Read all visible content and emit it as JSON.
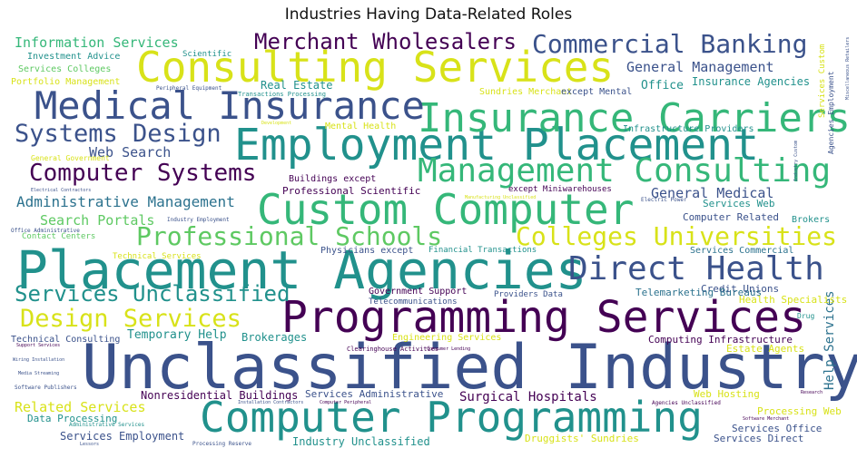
{
  "title": "Industries Having Data-Related Roles",
  "palette": {
    "deep-purple": "#440154",
    "blue": "#3b528b",
    "teal": "#21918c",
    "green": "#5ec962",
    "yellow": "#d8e219"
  },
  "chart_data": {
    "type": "wordcloud",
    "title": "Industries Having Data-Related Roles",
    "words": [
      {
        "text": "Unclassified Industry",
        "color": "#3b528b",
        "weight": 100
      },
      {
        "text": "Placement Agencies",
        "color": "#21918c",
        "weight": 92
      },
      {
        "text": "Employment Placement",
        "color": "#21918c",
        "weight": 80
      },
      {
        "text": "Programming Services",
        "color": "#440154",
        "weight": 80
      },
      {
        "text": "Computer Programming",
        "color": "#21918c",
        "weight": 75
      },
      {
        "text": "Consulting Services",
        "color": "#d8e219",
        "weight": 73
      },
      {
        "text": "Custom Computer",
        "color": "#35b779",
        "weight": 73
      },
      {
        "text": "Insurance Carriers",
        "color": "#35b779",
        "weight": 70
      },
      {
        "text": "Medical Insurance",
        "color": "#3b528b",
        "weight": 68
      },
      {
        "text": "Management Consulting",
        "color": "#35b779",
        "weight": 58
      },
      {
        "text": "Direct Health",
        "color": "#3b528b",
        "weight": 55
      },
      {
        "text": "Commercial Banking",
        "color": "#3b528b",
        "weight": 45
      },
      {
        "text": "Professional Schools",
        "color": "#5ec962",
        "weight": 45
      },
      {
        "text": "Colleges Universities",
        "color": "#d8e219",
        "weight": 45
      },
      {
        "text": "Systems Design",
        "color": "#3b528b",
        "weight": 42
      },
      {
        "text": "Design Services",
        "color": "#d8e219",
        "weight": 42
      },
      {
        "text": "Services Unclassified",
        "color": "#21918c",
        "weight": 40
      },
      {
        "text": "Merchant Wholesalers",
        "color": "#440154",
        "weight": 40
      },
      {
        "text": "Computer Systems",
        "color": "#440154",
        "weight": 40
      },
      {
        "text": "Administrative Management",
        "color": "#2c728e",
        "weight": 28
      },
      {
        "text": "General Management",
        "color": "#3b528b",
        "weight": 25
      },
      {
        "text": "Information Services",
        "color": "#35b779",
        "weight": 24
      },
      {
        "text": "Search Portals",
        "color": "#5ec962",
        "weight": 22
      },
      {
        "text": "Web Search",
        "color": "#3b528b",
        "weight": 22
      },
      {
        "text": "General Medical",
        "color": "#3b528b",
        "weight": 22
      },
      {
        "text": "Help Services",
        "color": "#2c728e",
        "weight": 20
      },
      {
        "text": "Surgical Hospitals",
        "color": "#440154",
        "weight": 22
      },
      {
        "text": "Related Services",
        "color": "#d8e219",
        "weight": 22
      },
      {
        "text": "Temporary Help",
        "color": "#21918c",
        "weight": 20
      },
      {
        "text": "Nonresidential Buildings",
        "color": "#440154",
        "weight": 18
      },
      {
        "text": "Services Administrative",
        "color": "#3b528b",
        "weight": 18
      },
      {
        "text": "Services Employment",
        "color": "#3b528b",
        "weight": 18
      },
      {
        "text": "Industry Unclassified",
        "color": "#21918c",
        "weight": 18
      },
      {
        "text": "Insurance Agencies",
        "color": "#21918c",
        "weight": 18
      },
      {
        "text": "Office",
        "color": "#21918c",
        "weight": 18
      },
      {
        "text": "Real Estate",
        "color": "#21918c",
        "weight": 17
      },
      {
        "text": "Brokerages",
        "color": "#21918c",
        "weight": 17
      },
      {
        "text": "Credit Unions",
        "color": "#3b528b",
        "weight": 16
      },
      {
        "text": "Telemarketing Bureaus",
        "color": "#2c728e",
        "weight": 16
      },
      {
        "text": "Health Specialists",
        "color": "#d8e219",
        "weight": 16
      },
      {
        "text": "Computing Infrastructure",
        "color": "#440154",
        "weight": 16
      },
      {
        "text": "Estate Agents",
        "color": "#d8e219",
        "weight": 16
      },
      {
        "text": "Professional Scientific",
        "color": "#440154",
        "weight": 16
      },
      {
        "text": "Services Web",
        "color": "#21918c",
        "weight": 16
      },
      {
        "text": "Computer Related",
        "color": "#3b528b",
        "weight": 15
      },
      {
        "text": "Services Commercial",
        "color": "#2c728e",
        "weight": 15
      },
      {
        "text": "Government Support",
        "color": "#440154",
        "weight": 15
      },
      {
        "text": "Web Hosting",
        "color": "#d8e219",
        "weight": 15
      },
      {
        "text": "Processing Web",
        "color": "#d8e219",
        "weight": 15
      },
      {
        "text": "Services Office",
        "color": "#3b528b",
        "weight": 15
      },
      {
        "text": "Services Direct",
        "color": "#3b528b",
        "weight": 15
      },
      {
        "text": "Druggists' Sundries",
        "color": "#d8e219",
        "weight": 15
      },
      {
        "text": "Data Processing",
        "color": "#21918c",
        "weight": 15
      },
      {
        "text": "Brokers",
        "color": "#21918c",
        "weight": 15
      },
      {
        "text": "Physicians except",
        "color": "#3b528b",
        "weight": 15
      },
      {
        "text": "Buildings except",
        "color": "#440154",
        "weight": 14
      },
      {
        "text": "Technical Consulting",
        "color": "#3b528b",
        "weight": 14
      },
      {
        "text": "Engineering Services",
        "color": "#d8e219",
        "weight": 14
      },
      {
        "text": "Mental Health",
        "color": "#d8e219",
        "weight": 14
      },
      {
        "text": "Infrastructure Providers",
        "color": "#21918c",
        "weight": 14
      },
      {
        "text": "Contact Centers",
        "color": "#5ec962",
        "weight": 14
      },
      {
        "text": "Sundries Merchant",
        "color": "#d8e219",
        "weight": 14
      },
      {
        "text": "except Mental",
        "color": "#3b528b",
        "weight": 14
      },
      {
        "text": "Investment Advice",
        "color": "#21918c",
        "weight": 13
      },
      {
        "text": "Services Colleges",
        "color": "#5ec962",
        "weight": 13
      },
      {
        "text": "Portfolio Management",
        "color": "#d8e219",
        "weight": 13
      },
      {
        "text": "Scientific",
        "color": "#21918c",
        "weight": 12
      },
      {
        "text": "except Miniwarehouses",
        "color": "#440154",
        "weight": 13
      },
      {
        "text": "Providers Data",
        "color": "#3b528b",
        "weight": 13
      },
      {
        "text": "Telecommunications",
        "color": "#3b528b",
        "weight": 13
      },
      {
        "text": "Financial Transactions",
        "color": "#21918c",
        "weight": 13
      },
      {
        "text": "Technical Services",
        "color": "#d8e219",
        "weight": 12
      },
      {
        "text": "Services Custom",
        "color": "#d8e219",
        "weight": 12
      },
      {
        "text": "Agencies Employment",
        "color": "#3b528b",
        "weight": 10
      },
      {
        "text": "Drug",
        "color": "#21918c",
        "weight": 10
      },
      {
        "text": "General Government",
        "color": "#d8e219",
        "weight": 10
      },
      {
        "text": "Transactions Processing",
        "color": "#21918c",
        "weight": 9
      },
      {
        "text": "Peripheral Equipment",
        "color": "#3b528b",
        "weight": 8
      },
      {
        "text": "Development",
        "color": "#d8e219",
        "weight": 7
      },
      {
        "text": "Electrical Contractors",
        "color": "#3b528b",
        "weight": 7
      },
      {
        "text": "Manufacturing Unclassified",
        "color": "#d8e219",
        "weight": 7
      },
      {
        "text": "Electric Power",
        "color": "#3b528b",
        "weight": 8
      },
      {
        "text": "Industry Employment",
        "color": "#3b528b",
        "weight": 8
      },
      {
        "text": "Office Administrative",
        "color": "#3b528b",
        "weight": 8
      },
      {
        "text": "Clearinghouse Activities",
        "color": "#440154",
        "weight": 9
      },
      {
        "text": "Support Services",
        "color": "#440154",
        "weight": 8
      },
      {
        "text": "Wiring Installation",
        "color": "#3b528b",
        "weight": 8
      },
      {
        "text": "Media Streaming",
        "color": "#3b528b",
        "weight": 8
      },
      {
        "text": "Software Publishers",
        "color": "#3b528b",
        "weight": 8
      },
      {
        "text": "Administrative Services",
        "color": "#21918c",
        "weight": 8
      },
      {
        "text": "Lessors",
        "color": "#3b528b",
        "weight": 8
      },
      {
        "text": "Processing Reserve",
        "color": "#3b528b",
        "weight": 8
      },
      {
        "text": "Installation Contractors",
        "color": "#3b528b",
        "weight": 8
      },
      {
        "text": "Computer Peripheral",
        "color": "#440154",
        "weight": 7
      },
      {
        "text": "Consumer Lending",
        "color": "#440154",
        "weight": 7
      },
      {
        "text": "Agencies Unclassified",
        "color": "#440154",
        "weight": 8
      },
      {
        "text": "Software Merchant",
        "color": "#440154",
        "weight": 7
      },
      {
        "text": "Research",
        "color": "#440154",
        "weight": 7
      },
      {
        "text": "Miscellaneous Retailers",
        "color": "#3b528b",
        "weight": 6
      },
      {
        "text": "Industry Custom",
        "color": "#3b528b",
        "weight": 6
      }
    ]
  }
}
